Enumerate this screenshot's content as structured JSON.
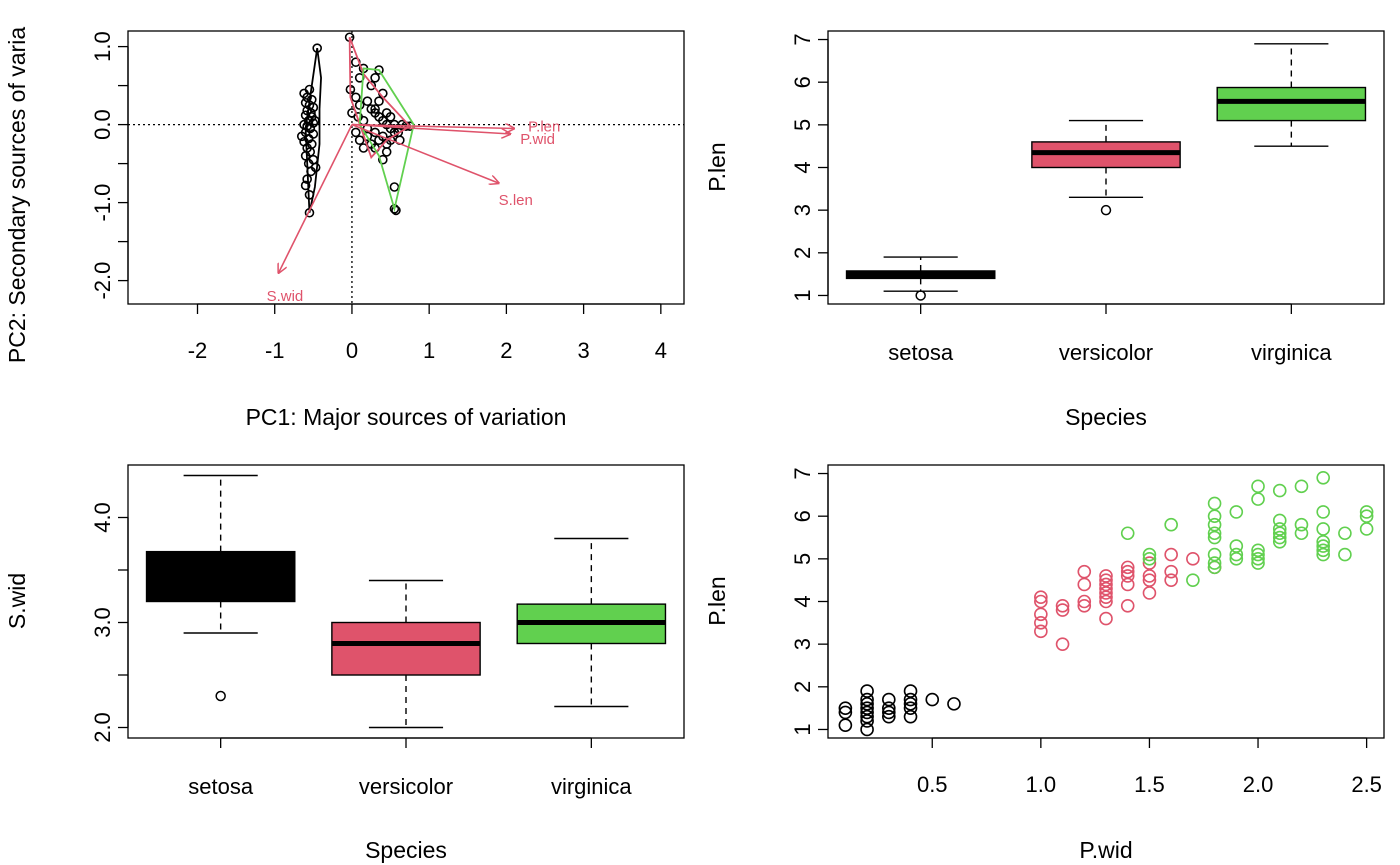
{
  "colors": {
    "setosa": "#000000",
    "versicolor": "#DF536B",
    "virginica": "#61D04F",
    "arrow": "#DF536B",
    "axis": "#000000"
  },
  "chart_data": [
    {
      "type": "scatter",
      "subtype": "PCA biplot with convex hulls per species",
      "xlabel": "PC1: Major sources of variation",
      "ylabel": "PC2: Secondary sources of varia",
      "xlim": [
        -2.9,
        4.3
      ],
      "ylim": [
        -2.3,
        1.2
      ],
      "xticks": [
        -2,
        -1,
        0,
        1,
        2,
        3,
        4
      ],
      "xtick_labels": [
        "-2",
        "-1",
        "0",
        "1",
        "2",
        "3",
        "4"
      ],
      "yticks": [
        1.0,
        0.5,
        0.0,
        -0.5,
        -1.0,
        -1.5,
        -2.0
      ],
      "ytick_labels": [
        "1.0",
        "",
        "0.0",
        "",
        "-1.0",
        "",
        "-2.0"
      ],
      "reference_lines": {
        "x": 0,
        "y": 0,
        "style": "dotted"
      },
      "arrows": [
        {
          "name": "S.len",
          "x": 1.9,
          "y": -0.75
        },
        {
          "name": "S.wid",
          "x": -0.95,
          "y": -1.9
        },
        {
          "name": "P.len",
          "x": 2.1,
          "y": -0.05
        },
        {
          "name": "P.wid",
          "x": 2.05,
          "y": -0.12
        }
      ],
      "hulls": [
        {
          "group": "setosa",
          "points": [
            [
              -0.45,
              0.98
            ],
            [
              -0.6,
              -0.05
            ],
            [
              -0.55,
              -1.13
            ],
            [
              -0.48,
              -0.8
            ],
            [
              -0.42,
              -0.25
            ],
            [
              -0.42,
              0.2
            ],
            [
              -0.4,
              0.6
            ]
          ]
        },
        {
          "group": "versicolor",
          "points": [
            [
              -0.03,
              1.12
            ],
            [
              0.15,
              0.65
            ],
            [
              0.4,
              0.35
            ],
            [
              0.75,
              -0.02
            ],
            [
              0.45,
              -0.2
            ],
            [
              0.25,
              -0.42
            ],
            [
              -0.02,
              0.35
            ]
          ]
        },
        {
          "group": "virginica",
          "points": [
            [
              0.15,
              0.72
            ],
            [
              0.35,
              0.7
            ],
            [
              0.8,
              0.0
            ],
            [
              0.55,
              -1.08
            ],
            [
              0.35,
              -0.4
            ],
            [
              0.1,
              0.0
            ]
          ]
        }
      ],
      "series": [
        {
          "group": "setosa",
          "points": [
            [
              -0.45,
              0.98
            ],
            [
              -0.55,
              0.45
            ],
            [
              -0.62,
              0.4
            ],
            [
              -0.58,
              0.35
            ],
            [
              -0.52,
              0.32
            ],
            [
              -0.6,
              0.28
            ],
            [
              -0.55,
              0.25
            ],
            [
              -0.5,
              0.22
            ],
            [
              -0.58,
              0.18
            ],
            [
              -0.53,
              0.15
            ],
            [
              -0.6,
              0.12
            ],
            [
              -0.52,
              0.1
            ],
            [
              -0.56,
              0.05
            ],
            [
              -0.5,
              0.02
            ],
            [
              -0.58,
              -0.02
            ],
            [
              -0.54,
              -0.05
            ],
            [
              -0.6,
              -0.1
            ],
            [
              -0.5,
              -0.12
            ],
            [
              -0.56,
              -0.18
            ],
            [
              -0.62,
              -0.22
            ],
            [
              -0.52,
              -0.25
            ],
            [
              -0.58,
              -0.3
            ],
            [
              -0.54,
              -0.35
            ],
            [
              -0.6,
              -0.4
            ],
            [
              -0.5,
              -0.45
            ],
            [
              -0.56,
              -0.5
            ],
            [
              -0.53,
              -0.6
            ],
            [
              -0.58,
              -0.7
            ],
            [
              -0.6,
              -0.78
            ],
            [
              -0.55,
              -0.9
            ],
            [
              -0.55,
              -1.13
            ],
            [
              -0.65,
              -0.15
            ],
            [
              -0.48,
              0.05
            ],
            [
              -0.47,
              -0.55
            ],
            [
              -0.62,
              0.0
            ]
          ]
        },
        {
          "group": "versicolor",
          "points": [
            [
              -0.03,
              1.12
            ],
            [
              0.05,
              0.8
            ],
            [
              0.1,
              0.6
            ],
            [
              -0.02,
              0.45
            ],
            [
              0.05,
              0.35
            ],
            [
              0.1,
              0.25
            ],
            [
              0.0,
              0.15
            ],
            [
              0.08,
              0.1
            ],
            [
              0.15,
              0.05
            ],
            [
              0.2,
              0.3
            ],
            [
              0.25,
              0.2
            ],
            [
              0.3,
              0.15
            ],
            [
              0.35,
              0.1
            ],
            [
              0.4,
              0.05
            ],
            [
              0.45,
              0.0
            ],
            [
              0.5,
              -0.05
            ],
            [
              0.55,
              -0.1
            ],
            [
              0.6,
              -0.05
            ],
            [
              0.65,
              0.0
            ],
            [
              0.7,
              -0.02
            ],
            [
              0.75,
              -0.02
            ],
            [
              0.2,
              -0.15
            ],
            [
              0.25,
              -0.25
            ],
            [
              0.3,
              -0.3
            ],
            [
              0.15,
              -0.3
            ],
            [
              0.1,
              -0.2
            ],
            [
              0.05,
              -0.1
            ],
            [
              0.35,
              -0.2
            ],
            [
              0.4,
              -0.15
            ],
            [
              0.45,
              -0.25
            ]
          ]
        },
        {
          "group": "virginica",
          "points": [
            [
              0.15,
              0.72
            ],
            [
              0.35,
              0.7
            ],
            [
              0.3,
              0.6
            ],
            [
              0.25,
              0.5
            ],
            [
              0.4,
              0.4
            ],
            [
              0.35,
              0.3
            ],
            [
              0.3,
              0.2
            ],
            [
              0.45,
              0.15
            ],
            [
              0.5,
              0.1
            ],
            [
              0.55,
              0.0
            ],
            [
              0.6,
              -0.1
            ],
            [
              0.5,
              -0.2
            ],
            [
              0.45,
              -0.35
            ],
            [
              0.4,
              -0.45
            ],
            [
              0.55,
              -0.8
            ],
            [
              0.55,
              -1.08
            ],
            [
              0.57,
              -1.1
            ],
            [
              0.2,
              -0.05
            ],
            [
              0.3,
              -0.1
            ],
            [
              0.62,
              -0.2
            ]
          ]
        }
      ]
    },
    {
      "type": "boxplot",
      "xlabel": "Species",
      "ylabel": "P.len",
      "categories": [
        "setosa",
        "versicolor",
        "virginica"
      ],
      "ylim": [
        0.8,
        7.2
      ],
      "yticks": [
        1,
        2,
        3,
        4,
        5,
        6,
        7
      ],
      "boxes": [
        {
          "name": "setosa",
          "min": 1.1,
          "q1": 1.4,
          "median": 1.5,
          "q3": 1.575,
          "max": 1.9,
          "outliers": [
            1.0
          ]
        },
        {
          "name": "versicolor",
          "min": 3.3,
          "q1": 4.0,
          "median": 4.35,
          "q3": 4.6,
          "max": 5.1,
          "outliers": [
            3.0
          ]
        },
        {
          "name": "virginica",
          "min": 4.5,
          "q1": 5.1,
          "median": 5.55,
          "q3": 5.875,
          "max": 6.9,
          "outliers": []
        }
      ]
    },
    {
      "type": "boxplot",
      "xlabel": "Species",
      "ylabel": "S.wid",
      "categories": [
        "setosa",
        "versicolor",
        "virginica"
      ],
      "ylim": [
        1.9,
        4.5
      ],
      "yticks": [
        2.0,
        2.5,
        3.0,
        3.5,
        4.0
      ],
      "ytick_labels": [
        "2.0",
        "",
        "3.0",
        "",
        "4.0"
      ],
      "boxes": [
        {
          "name": "setosa",
          "min": 2.9,
          "q1": 3.2,
          "median": 3.4,
          "q3": 3.675,
          "max": 4.4,
          "outliers": [
            2.3
          ]
        },
        {
          "name": "versicolor",
          "min": 2.0,
          "q1": 2.5,
          "median": 2.8,
          "q3": 3.0,
          "max": 3.4,
          "outliers": []
        },
        {
          "name": "virginica",
          "min": 2.2,
          "q1": 2.8,
          "median": 3.0,
          "q3": 3.175,
          "max": 3.8,
          "outliers": []
        }
      ]
    },
    {
      "type": "scatter",
      "xlabel": "P.wid",
      "ylabel": "P.len",
      "xlim": [
        0.02,
        2.58
      ],
      "ylim": [
        0.8,
        7.2
      ],
      "xticks": [
        0.5,
        1.0,
        1.5,
        2.0,
        2.5
      ],
      "xtick_labels": [
        "0.5",
        "1.0",
        "1.5",
        "2.0",
        "2.5"
      ],
      "yticks": [
        1,
        2,
        3,
        4,
        5,
        6,
        7
      ],
      "series": [
        {
          "group": "setosa",
          "points": [
            [
              0.1,
              1.1
            ],
            [
              0.1,
              1.4
            ],
            [
              0.1,
              1.5
            ],
            [
              0.2,
              1.0
            ],
            [
              0.2,
              1.2
            ],
            [
              0.2,
              1.3
            ],
            [
              0.2,
              1.4
            ],
            [
              0.2,
              1.5
            ],
            [
              0.2,
              1.6
            ],
            [
              0.2,
              1.7
            ],
            [
              0.2,
              1.9
            ],
            [
              0.3,
              1.3
            ],
            [
              0.3,
              1.4
            ],
            [
              0.3,
              1.5
            ],
            [
              0.3,
              1.7
            ],
            [
              0.4,
              1.3
            ],
            [
              0.4,
              1.5
            ],
            [
              0.4,
              1.6
            ],
            [
              0.4,
              1.7
            ],
            [
              0.4,
              1.9
            ],
            [
              0.5,
              1.7
            ],
            [
              0.6,
              1.6
            ]
          ]
        },
        {
          "group": "versicolor",
          "points": [
            [
              1.0,
              3.3
            ],
            [
              1.0,
              3.5
            ],
            [
              1.0,
              3.7
            ],
            [
              1.0,
              4.0
            ],
            [
              1.0,
              4.1
            ],
            [
              1.1,
              3.0
            ],
            [
              1.1,
              3.8
            ],
            [
              1.1,
              3.9
            ],
            [
              1.2,
              3.9
            ],
            [
              1.2,
              4.0
            ],
            [
              1.2,
              4.4
            ],
            [
              1.2,
              4.7
            ],
            [
              1.3,
              3.6
            ],
            [
              1.3,
              4.0
            ],
            [
              1.3,
              4.1
            ],
            [
              1.3,
              4.2
            ],
            [
              1.3,
              4.3
            ],
            [
              1.3,
              4.4
            ],
            [
              1.3,
              4.5
            ],
            [
              1.3,
              4.6
            ],
            [
              1.4,
              3.9
            ],
            [
              1.4,
              4.4
            ],
            [
              1.4,
              4.6
            ],
            [
              1.4,
              4.7
            ],
            [
              1.4,
              4.8
            ],
            [
              1.5,
              4.2
            ],
            [
              1.5,
              4.5
            ],
            [
              1.5,
              4.6
            ],
            [
              1.5,
              4.9
            ],
            [
              1.6,
              4.5
            ],
            [
              1.6,
              4.7
            ],
            [
              1.6,
              5.1
            ],
            [
              1.7,
              5.0
            ],
            [
              1.8,
              4.8
            ]
          ]
        },
        {
          "group": "virginica",
          "points": [
            [
              1.4,
              5.6
            ],
            [
              1.5,
              5.0
            ],
            [
              1.5,
              5.1
            ],
            [
              1.6,
              5.8
            ],
            [
              1.7,
              4.5
            ],
            [
              1.8,
              4.8
            ],
            [
              1.8,
              4.9
            ],
            [
              1.8,
              5.1
            ],
            [
              1.8,
              5.5
            ],
            [
              1.8,
              5.6
            ],
            [
              1.8,
              5.8
            ],
            [
              1.8,
              6.0
            ],
            [
              1.8,
              6.3
            ],
            [
              1.9,
              5.0
            ],
            [
              1.9,
              5.1
            ],
            [
              1.9,
              5.3
            ],
            [
              1.9,
              6.1
            ],
            [
              2.0,
              4.9
            ],
            [
              2.0,
              5.0
            ],
            [
              2.0,
              5.1
            ],
            [
              2.0,
              5.2
            ],
            [
              2.0,
              6.4
            ],
            [
              2.0,
              6.7
            ],
            [
              2.1,
              5.4
            ],
            [
              2.1,
              5.5
            ],
            [
              2.1,
              5.6
            ],
            [
              2.1,
              5.7
            ],
            [
              2.1,
              5.9
            ],
            [
              2.1,
              6.6
            ],
            [
              2.2,
              5.6
            ],
            [
              2.2,
              5.8
            ],
            [
              2.2,
              6.7
            ],
            [
              2.3,
              5.1
            ],
            [
              2.3,
              5.2
            ],
            [
              2.3,
              5.3
            ],
            [
              2.3,
              5.4
            ],
            [
              2.3,
              5.7
            ],
            [
              2.3,
              6.1
            ],
            [
              2.3,
              6.9
            ],
            [
              2.4,
              5.1
            ],
            [
              2.4,
              5.6
            ],
            [
              2.5,
              5.7
            ],
            [
              2.5,
              6.0
            ],
            [
              2.5,
              6.1
            ]
          ]
        }
      ]
    }
  ]
}
